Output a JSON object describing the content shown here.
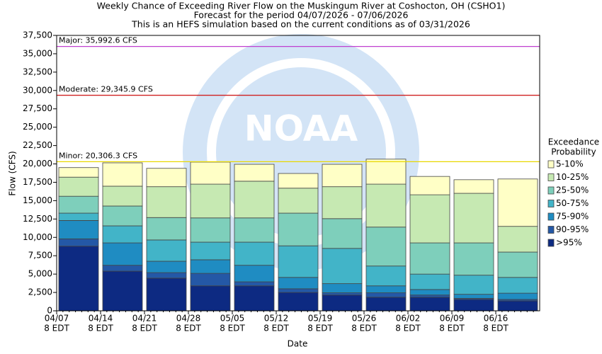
{
  "chart_data": {
    "type": "bar",
    "stacked": true,
    "title": [
      "Weekly Chance of Exceeding River Flow on the Muskingum River at Coshocton, OH (CSHO1)",
      "Forecast for the period 04/07/2026 - 07/06/2026",
      "This is an HEFS simulation based on the current conditions as of 03/31/2026"
    ],
    "watermark": "NOAA",
    "x_label": "Date",
    "y_label": "Flow (CFS)",
    "legend_title": [
      "Exceedance",
      "Probability"
    ],
    "categories": [
      [
        "04/07",
        "8 EDT"
      ],
      [
        "04/14",
        "8 EDT"
      ],
      [
        "04/21",
        "8 EDT"
      ],
      [
        "04/28",
        "8 EDT"
      ],
      [
        "05/05",
        "8 EDT"
      ],
      [
        "05/12",
        "8 EDT"
      ],
      [
        "05/19",
        "8 EDT"
      ],
      [
        "05/26",
        "8 EDT"
      ],
      [
        "06/02",
        "8 EDT"
      ],
      [
        "06/09",
        "8 EDT"
      ],
      [
        "06/16",
        "8 EDT"
      ]
    ],
    "series": [
      {
        "name": ">95%",
        "color": "#0d2a82",
        "values": [
          8800,
          5400,
          4450,
          3400,
          3400,
          2500,
          2150,
          1850,
          1850,
          1550,
          1350
        ]
      },
      {
        "name": "90-95%",
        "color": "#2458a6",
        "values": [
          1000,
          800,
          750,
          1700,
          550,
          500,
          300,
          600,
          300,
          150,
          200
        ]
      },
      {
        "name": "75-90%",
        "color": "#1f8cc2",
        "values": [
          2500,
          3050,
          1550,
          1850,
          2250,
          1550,
          1250,
          950,
          750,
          550,
          850
        ]
      },
      {
        "name": "50-75%",
        "color": "#42b4c8",
        "values": [
          1000,
          2320,
          2900,
          2400,
          3150,
          4300,
          4800,
          2700,
          2100,
          2600,
          2150
        ]
      },
      {
        "name": "25-50%",
        "color": "#7ecfbb",
        "values": [
          2300,
          2700,
          3050,
          3300,
          3300,
          4450,
          4050,
          5300,
          4250,
          4400,
          3450
        ]
      },
      {
        "name": "10-25%",
        "color": "#c6e9b2",
        "values": [
          2600,
          2700,
          4200,
          4600,
          5000,
          3400,
          4350,
          5850,
          6550,
          6750,
          3500
        ]
      },
      {
        "name": "5-10%",
        "color": "#ffffc6",
        "values": [
          1300,
          3180,
          2500,
          3000,
          2300,
          2000,
          3050,
          3400,
          2500,
          1850,
          6450
        ]
      }
    ],
    "thresholds": [
      {
        "label": "Major: 35,992.6 CFS",
        "value": 35992.6,
        "color": "#c040d0"
      },
      {
        "label": "Moderate: 29,345.9 CFS",
        "value": 29345.9,
        "color": "#d02020"
      },
      {
        "label": "Minor: 20,306.3 CFS",
        "value": 20306.3,
        "color": "#e8d800"
      }
    ],
    "ylim": [
      0,
      37500
    ],
    "yticks": [
      {
        "value": 0,
        "label": "0"
      },
      {
        "value": 2500,
        "label": "2,500"
      },
      {
        "value": 5000,
        "label": "5,000"
      },
      {
        "value": 7500,
        "label": "7,500"
      },
      {
        "value": 10000,
        "label": "10,000"
      },
      {
        "value": 12500,
        "label": "12,500"
      },
      {
        "value": 15000,
        "label": "15,000"
      },
      {
        "value": 17500,
        "label": "17,500"
      },
      {
        "value": 20000,
        "label": "20,000"
      },
      {
        "value": 22500,
        "label": "22,500"
      },
      {
        "value": 25000,
        "label": "25,000"
      },
      {
        "value": 27500,
        "label": "27,500"
      },
      {
        "value": 30000,
        "label": "30,000"
      },
      {
        "value": 32500,
        "label": "32,500"
      },
      {
        "value": 35000,
        "label": "35,000"
      },
      {
        "value": 37500,
        "label": "37,500"
      }
    ]
  }
}
